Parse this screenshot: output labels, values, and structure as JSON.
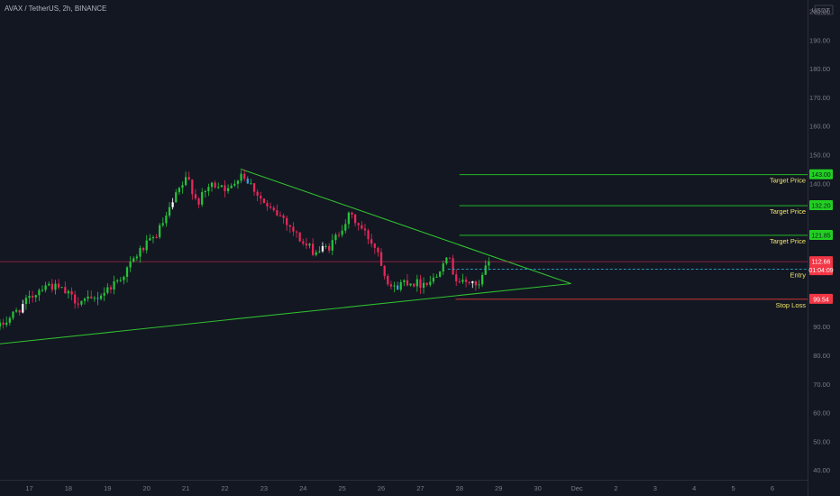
{
  "header": {
    "symbol_line": "AVAX / TetherUS, 2h, BINANCE"
  },
  "colors": {
    "background": "#131722",
    "up": "#26c43a",
    "down": "#e8285a",
    "neutral_up": "#ffffff",
    "neutral_down": "#3b9ddd",
    "trendline": "#2fbf2f",
    "target_line": "#22d022",
    "stop_line": "#e33b3b",
    "entry_line": "#2aa6c8",
    "price_line": "#e8285a",
    "axis_text": "#787b86",
    "label_text": "#f2e56b"
  },
  "chart_data": {
    "type": "candlestick",
    "symbol": "AVAX / TetherUS",
    "interval": "2h",
    "exchange": "BINANCE",
    "quote_currency": "USDT",
    "y_axis": {
      "ticks": [
        40,
        50,
        60,
        70,
        80,
        90,
        100,
        110,
        120,
        130,
        140,
        150,
        160,
        170,
        180,
        190,
        200
      ],
      "tick_labels": [
        "40.00",
        "50.00",
        "60.00",
        "70.00",
        "80.00",
        "90.00",
        "",
        "",
        "",
        "",
        "140.00",
        "150.00",
        "160.00",
        "170.00",
        "180.00",
        "190.00",
        "200.00"
      ],
      "currency_label": "USDT",
      "ylim": [
        35,
        203
      ]
    },
    "x_axis": {
      "tick_labels": [
        "17",
        "18",
        "19",
        "20",
        "21",
        "22",
        "23",
        "24",
        "25",
        "26",
        "27",
        "28",
        "29",
        "30",
        "Dec",
        "2",
        "3",
        "4",
        "5",
        "6"
      ],
      "tick_positions_day": [
        0,
        1,
        2,
        3,
        4,
        5,
        6,
        7,
        8,
        9,
        10,
        11,
        12,
        13,
        14,
        15,
        16,
        17,
        18,
        19
      ],
      "xlim_day": [
        -0.75,
        19.9
      ]
    },
    "anchors": [
      {
        "d": -0.75,
        "p": 90
      },
      {
        "d": -0.2,
        "p": 97
      },
      {
        "d": 0.4,
        "p": 105
      },
      {
        "d": 0.8,
        "p": 103
      },
      {
        "d": 1.2,
        "p": 99
      },
      {
        "d": 1.6,
        "p": 99
      },
      {
        "d": 1.9,
        "p": 102
      },
      {
        "d": 2.4,
        "p": 108
      },
      {
        "d": 2.8,
        "p": 116
      },
      {
        "d": 3.2,
        "p": 121
      },
      {
        "d": 3.5,
        "p": 128
      },
      {
        "d": 3.8,
        "p": 137
      },
      {
        "d": 4.05,
        "p": 142
      },
      {
        "d": 4.3,
        "p": 133
      },
      {
        "d": 4.6,
        "p": 139
      },
      {
        "d": 4.9,
        "p": 140
      },
      {
        "d": 5.1,
        "p": 137
      },
      {
        "d": 5.4,
        "p": 144
      },
      {
        "d": 5.7,
        "p": 139
      },
      {
        "d": 6.1,
        "p": 131
      },
      {
        "d": 6.5,
        "p": 128
      },
      {
        "d": 7.0,
        "p": 119
      },
      {
        "d": 7.3,
        "p": 116
      },
      {
        "d": 7.7,
        "p": 118
      },
      {
        "d": 8.0,
        "p": 125
      },
      {
        "d": 8.2,
        "p": 129
      },
      {
        "d": 8.5,
        "p": 124
      },
      {
        "d": 8.9,
        "p": 117
      },
      {
        "d": 9.1,
        "p": 108
      },
      {
        "d": 9.3,
        "p": 103
      },
      {
        "d": 9.6,
        "p": 106
      },
      {
        "d": 10.0,
        "p": 105
      },
      {
        "d": 10.4,
        "p": 107
      },
      {
        "d": 10.65,
        "p": 116
      },
      {
        "d": 10.9,
        "p": 107
      },
      {
        "d": 11.1,
        "p": 105
      },
      {
        "d": 11.35,
        "p": 106
      },
      {
        "d": 11.45,
        "p": 102
      },
      {
        "d": 11.65,
        "p": 110
      },
      {
        "d": 11.78,
        "p": 112.66
      }
    ],
    "last_price": 112.66,
    "countdown": "01:04:09",
    "levels": [
      {
        "name": "Target Price",
        "price": 143.0,
        "label": "143.00",
        "kind": "target",
        "start_day": 11.0
      },
      {
        "name": "Target Price",
        "price": 132.2,
        "label": "132.20",
        "kind": "target",
        "start_day": 11.0
      },
      {
        "name": "Target Price",
        "price": 121.85,
        "label": "121.85",
        "kind": "target",
        "start_day": 11.0
      },
      {
        "name": "Entry",
        "price": 110.0,
        "label": "110.00",
        "kind": "entry",
        "start_day": 10.7
      },
      {
        "name": "Stop Loss",
        "price": 99.54,
        "label": "99.54",
        "kind": "stop",
        "start_day": 10.9
      }
    ],
    "trendlines": [
      {
        "from": {
          "d": 5.4,
          "p": 145
        },
        "to": {
          "d": 13.85,
          "p": 105
        }
      },
      {
        "from": {
          "d": -0.75,
          "p": 84
        },
        "to": {
          "d": 13.85,
          "p": 105
        }
      }
    ]
  }
}
